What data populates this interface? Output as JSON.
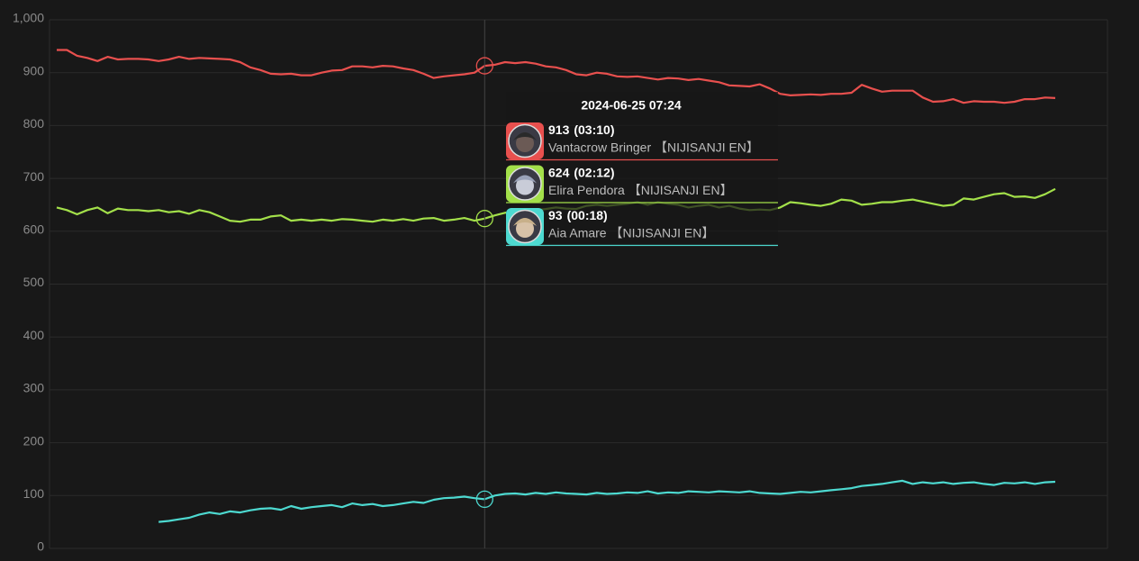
{
  "chart_data": {
    "type": "line",
    "categories": [
      null,
      null,
      null,
      null,
      null,
      null,
      null,
      null,
      null,
      null,
      null,
      null,
      null,
      null,
      null,
      null,
      null,
      null,
      null,
      null,
      null,
      null,
      null,
      null,
      null,
      null,
      null,
      null,
      null,
      null,
      null,
      null,
      null,
      null,
      null,
      null,
      null,
      null,
      null,
      null,
      null,
      null,
      "2024-06-25 07:24",
      null,
      null,
      null,
      null,
      null,
      null,
      null,
      null,
      null,
      null,
      null,
      null,
      null,
      null,
      null,
      null,
      null,
      null,
      null,
      null,
      null,
      null,
      null,
      null,
      null,
      null,
      null,
      null,
      null,
      null,
      null,
      null,
      null,
      null,
      null,
      null,
      null,
      null,
      null,
      null,
      null,
      null,
      null,
      null,
      null,
      null,
      null,
      null,
      null,
      null,
      null,
      null,
      null,
      null,
      null,
      null
    ],
    "series": [
      {
        "name": "Vantacrow Bringer 【NIJISANJI EN】",
        "color": "#e8504e",
        "tooltip_note": "(03:10)",
        "values": [
          943,
          943,
          932,
          928,
          922,
          930,
          925,
          926,
          926,
          925,
          922,
          925,
          930,
          926,
          928,
          927,
          926,
          925,
          920,
          910,
          905,
          898,
          897,
          898,
          895,
          895,
          900,
          904,
          905,
          912,
          912,
          910,
          913,
          912,
          908,
          905,
          898,
          890,
          893,
          895,
          897,
          900,
          913,
          915,
          920,
          918,
          920,
          917,
          912,
          910,
          905,
          897,
          895,
          900,
          898,
          893,
          892,
          893,
          890,
          887,
          890,
          889,
          886,
          888,
          885,
          882,
          876,
          875,
          874,
          878,
          870,
          860,
          857,
          858,
          859,
          858,
          860,
          860,
          862,
          877,
          870,
          864,
          866,
          866,
          866,
          853,
          845,
          846,
          850,
          843,
          846,
          845,
          845,
          843,
          845,
          850,
          850,
          853,
          852
        ]
      },
      {
        "name": "Elira Pendora 【NIJISANJI EN】",
        "color": "#a3e04a",
        "tooltip_note": "(02:12)",
        "values": [
          645,
          640,
          632,
          640,
          645,
          634,
          643,
          640,
          640,
          638,
          640,
          636,
          638,
          633,
          640,
          636,
          628,
          620,
          618,
          622,
          622,
          628,
          630,
          620,
          622,
          620,
          622,
          620,
          623,
          622,
          620,
          618,
          622,
          620,
          623,
          620,
          624,
          625,
          620,
          622,
          625,
          620,
          624,
          630,
          635,
          638,
          640,
          640,
          642,
          645,
          643,
          642,
          648,
          650,
          648,
          650,
          652,
          655,
          650,
          655,
          652,
          650,
          645,
          648,
          650,
          645,
          648,
          643,
          640,
          641,
          640,
          645,
          655,
          653,
          650,
          648,
          652,
          660,
          658,
          650,
          652,
          655,
          655,
          658,
          660,
          656,
          652,
          648,
          650,
          662,
          660,
          665,
          670,
          672,
          665,
          666,
          663,
          670,
          680
        ]
      },
      {
        "name": "Aia Amare 【NIJISANJI EN】",
        "color": "#4dd9d0",
        "tooltip_note": "(00:18)",
        "values": [
          null,
          null,
          null,
          null,
          null,
          null,
          null,
          null,
          null,
          null,
          50,
          52,
          55,
          58,
          64,
          68,
          65,
          70,
          68,
          72,
          75,
          76,
          73,
          80,
          75,
          78,
          80,
          82,
          78,
          85,
          82,
          84,
          80,
          82,
          85,
          88,
          86,
          92,
          95,
          96,
          98,
          95,
          93,
          100,
          103,
          104,
          102,
          105,
          103,
          106,
          104,
          103,
          102,
          105,
          103,
          104,
          106,
          105,
          108,
          104,
          106,
          105,
          108,
          107,
          106,
          108,
          107,
          106,
          108,
          105,
          104,
          103,
          105,
          107,
          106,
          108,
          110,
          112,
          114,
          118,
          120,
          122,
          125,
          128,
          122,
          125,
          123,
          125,
          122,
          124,
          125,
          122,
          120,
          124,
          123,
          125,
          122,
          125,
          126
        ]
      }
    ],
    "ylim": [
      0,
      1000
    ],
    "yticks": [
      0,
      100,
      200,
      300,
      400,
      500,
      600,
      700,
      800,
      900,
      {
        "value": 1000,
        "label": "1,000"
      }
    ],
    "grid": true
  }
}
